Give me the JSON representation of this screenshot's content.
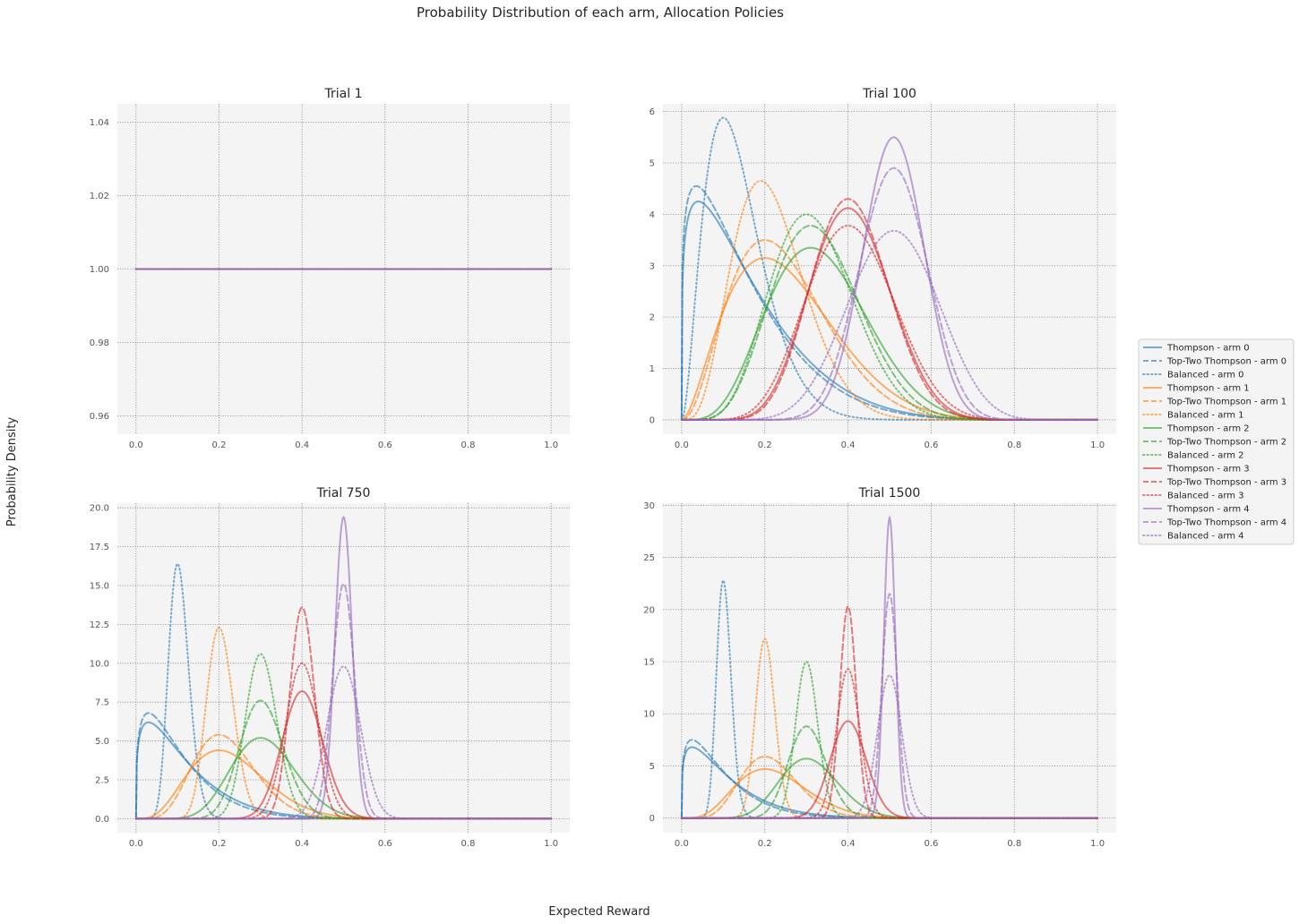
{
  "figure": {
    "title": "Probability Distribution of each arm, Allocation Policies",
    "xlabel": "Expected Reward",
    "ylabel": "Probability Density"
  },
  "colors": {
    "arm0": "#1f77b4",
    "arm1": "#ff7f0e",
    "arm2": "#2ca02c",
    "arm3": "#d62728",
    "arm4": "#9467bd",
    "axes_bg": "#f4f4f4",
    "grid": "#8c8c8c"
  },
  "legend": {
    "placement": "right",
    "entries": [
      {
        "label": "Thompson - arm 0",
        "arm": 0,
        "style": "solid"
      },
      {
        "label": "Top-Two Thompson - arm 0",
        "arm": 0,
        "style": "dashed"
      },
      {
        "label": "Balanced - arm 0",
        "arm": 0,
        "style": "dotted"
      },
      {
        "label": "Thompson - arm 1",
        "arm": 1,
        "style": "solid"
      },
      {
        "label": "Top-Two Thompson - arm 1",
        "arm": 1,
        "style": "dashed"
      },
      {
        "label": "Balanced - arm 1",
        "arm": 1,
        "style": "dotted"
      },
      {
        "label": "Thompson - arm 2",
        "arm": 2,
        "style": "solid"
      },
      {
        "label": "Top-Two Thompson - arm 2",
        "arm": 2,
        "style": "dashed"
      },
      {
        "label": "Balanced - arm 2",
        "arm": 2,
        "style": "dotted"
      },
      {
        "label": "Thompson - arm 3",
        "arm": 3,
        "style": "solid"
      },
      {
        "label": "Top-Two Thompson - arm 3",
        "arm": 3,
        "style": "dashed"
      },
      {
        "label": "Balanced - arm 3",
        "arm": 3,
        "style": "dotted"
      },
      {
        "label": "Thompson - arm 4",
        "arm": 4,
        "style": "solid"
      },
      {
        "label": "Top-Two Thompson - arm 4",
        "arm": 4,
        "style": "dashed"
      },
      {
        "label": "Balanced - arm 4",
        "arm": 4,
        "style": "dotted"
      }
    ]
  },
  "chart_data": [
    {
      "type": "line",
      "title": "Trial 1",
      "xlim": [
        0,
        1
      ],
      "ylim": [
        0.955,
        1.045
      ],
      "xticks": [
        "0.0",
        "0.2",
        "0.4",
        "0.6",
        "0.8",
        "1.0"
      ],
      "yticks": [
        "0.96",
        "0.98",
        "1.00",
        "1.02",
        "1.04"
      ],
      "grid": true,
      "distribution": "beta",
      "series": [
        {
          "name": "Thompson - arm 0",
          "arm": 0,
          "style": "solid",
          "mode": 0,
          "peak": 1.0
        },
        {
          "name": "Top-Two Thompson - arm 0",
          "arm": 0,
          "style": "dashed",
          "mode": 0,
          "peak": 1.0
        },
        {
          "name": "Balanced - arm 0",
          "arm": 0,
          "style": "dotted",
          "mode": 0,
          "peak": 1.0
        },
        {
          "name": "Thompson - arm 1",
          "arm": 1,
          "style": "solid",
          "mode": 0,
          "peak": 1.0
        },
        {
          "name": "Top-Two Thompson - arm 1",
          "arm": 1,
          "style": "dashed",
          "mode": 0,
          "peak": 1.0
        },
        {
          "name": "Balanced - arm 1",
          "arm": 1,
          "style": "dotted",
          "mode": 0,
          "peak": 1.0
        },
        {
          "name": "Thompson - arm 2",
          "arm": 2,
          "style": "solid",
          "mode": 0,
          "peak": 1.0
        },
        {
          "name": "Top-Two Thompson - arm 2",
          "arm": 2,
          "style": "dashed",
          "mode": 0,
          "peak": 1.0
        },
        {
          "name": "Balanced - arm 2",
          "arm": 2,
          "style": "dotted",
          "mode": 0,
          "peak": 1.0
        },
        {
          "name": "Thompson - arm 3",
          "arm": 3,
          "style": "solid",
          "mode": 0,
          "peak": 1.0
        },
        {
          "name": "Top-Two Thompson - arm 3",
          "arm": 3,
          "style": "dashed",
          "mode": 0,
          "peak": 1.0
        },
        {
          "name": "Balanced - arm 3",
          "arm": 3,
          "style": "dotted",
          "mode": 0,
          "peak": 1.0
        },
        {
          "name": "Thompson - arm 4",
          "arm": 4,
          "style": "solid",
          "mode": 0,
          "peak": 1.0
        },
        {
          "name": "Top-Two Thompson - arm 4",
          "arm": 4,
          "style": "dashed",
          "mode": 0,
          "peak": 1.0
        },
        {
          "name": "Balanced - arm 4",
          "arm": 4,
          "style": "dotted",
          "mode": 0,
          "peak": 1.0
        }
      ]
    },
    {
      "type": "line",
      "title": "Trial 100",
      "xlim": [
        0,
        1
      ],
      "ylim": [
        -0.28,
        6.15
      ],
      "xticks": [
        "0.0",
        "0.2",
        "0.4",
        "0.6",
        "0.8",
        "1.0"
      ],
      "yticks": [
        "0",
        "1",
        "2",
        "3",
        "4",
        "5",
        "6"
      ],
      "grid": true,
      "distribution": "beta",
      "series": [
        {
          "name": "Thompson - arm 0",
          "arm": 0,
          "style": "solid",
          "mode": 0.04,
          "peak": 4.25
        },
        {
          "name": "Top-Two Thompson - arm 0",
          "arm": 0,
          "style": "dashed",
          "mode": 0.035,
          "peak": 4.55
        },
        {
          "name": "Balanced - arm 0",
          "arm": 0,
          "style": "dotted",
          "mode": 0.1,
          "peak": 5.88
        },
        {
          "name": "Thompson - arm 1",
          "arm": 1,
          "style": "solid",
          "mode": 0.2,
          "peak": 3.15
        },
        {
          "name": "Top-Two Thompson - arm 1",
          "arm": 1,
          "style": "dashed",
          "mode": 0.2,
          "peak": 3.5
        },
        {
          "name": "Balanced - arm 1",
          "arm": 1,
          "style": "dotted",
          "mode": 0.19,
          "peak": 4.65
        },
        {
          "name": "Thompson - arm 2",
          "arm": 2,
          "style": "solid",
          "mode": 0.31,
          "peak": 3.35
        },
        {
          "name": "Top-Two Thompson - arm 2",
          "arm": 2,
          "style": "dashed",
          "mode": 0.31,
          "peak": 3.78
        },
        {
          "name": "Balanced - arm 2",
          "arm": 2,
          "style": "dotted",
          "mode": 0.3,
          "peak": 4.0
        },
        {
          "name": "Thompson - arm 3",
          "arm": 3,
          "style": "solid",
          "mode": 0.4,
          "peak": 4.12
        },
        {
          "name": "Top-Two Thompson - arm 3",
          "arm": 3,
          "style": "dashed",
          "mode": 0.4,
          "peak": 4.3
        },
        {
          "name": "Balanced - arm 3",
          "arm": 3,
          "style": "dotted",
          "mode": 0.4,
          "peak": 3.78
        },
        {
          "name": "Thompson - arm 4",
          "arm": 4,
          "style": "solid",
          "mode": 0.51,
          "peak": 5.5
        },
        {
          "name": "Top-Two Thompson - arm 4",
          "arm": 4,
          "style": "dashed",
          "mode": 0.51,
          "peak": 4.9
        },
        {
          "name": "Balanced - arm 4",
          "arm": 4,
          "style": "dotted",
          "mode": 0.51,
          "peak": 3.68
        }
      ]
    },
    {
      "type": "line",
      "title": "Trial 750",
      "xlim": [
        0,
        1
      ],
      "ylim": [
        -0.9,
        20.3
      ],
      "xticks": [
        "0.0",
        "0.2",
        "0.4",
        "0.6",
        "0.8",
        "1.0"
      ],
      "yticks": [
        "0.0",
        "2.5",
        "5.0",
        "7.5",
        "10.0",
        "12.5",
        "15.0",
        "17.5",
        "20.0"
      ],
      "grid": true,
      "distribution": "beta",
      "series": [
        {
          "name": "Thompson - arm 0",
          "arm": 0,
          "style": "solid",
          "mode": 0.03,
          "peak": 6.2
        },
        {
          "name": "Top-Two Thompson - arm 0",
          "arm": 0,
          "style": "dashed",
          "mode": 0.03,
          "peak": 6.8
        },
        {
          "name": "Balanced - arm 0",
          "arm": 0,
          "style": "dotted",
          "mode": 0.1,
          "peak": 16.4
        },
        {
          "name": "Thompson - arm 1",
          "arm": 1,
          "style": "solid",
          "mode": 0.2,
          "peak": 4.4
        },
        {
          "name": "Top-Two Thompson - arm 1",
          "arm": 1,
          "style": "dashed",
          "mode": 0.2,
          "peak": 5.4
        },
        {
          "name": "Balanced - arm 1",
          "arm": 1,
          "style": "dotted",
          "mode": 0.2,
          "peak": 12.3
        },
        {
          "name": "Thompson - arm 2",
          "arm": 2,
          "style": "solid",
          "mode": 0.3,
          "peak": 5.2
        },
        {
          "name": "Top-Two Thompson - arm 2",
          "arm": 2,
          "style": "dashed",
          "mode": 0.3,
          "peak": 7.6
        },
        {
          "name": "Balanced - arm 2",
          "arm": 2,
          "style": "dotted",
          "mode": 0.3,
          "peak": 10.6
        },
        {
          "name": "Thompson - arm 3",
          "arm": 3,
          "style": "solid",
          "mode": 0.4,
          "peak": 8.2
        },
        {
          "name": "Top-Two Thompson - arm 3",
          "arm": 3,
          "style": "dashed",
          "mode": 0.4,
          "peak": 13.6
        },
        {
          "name": "Balanced - arm 3",
          "arm": 3,
          "style": "dotted",
          "mode": 0.4,
          "peak": 10.0
        },
        {
          "name": "Thompson - arm 4",
          "arm": 4,
          "style": "solid",
          "mode": 0.5,
          "peak": 19.4
        },
        {
          "name": "Top-Two Thompson - arm 4",
          "arm": 4,
          "style": "dashed",
          "mode": 0.5,
          "peak": 15.1
        },
        {
          "name": "Balanced - arm 4",
          "arm": 4,
          "style": "dotted",
          "mode": 0.5,
          "peak": 9.8
        }
      ]
    },
    {
      "type": "line",
      "title": "Trial 1500",
      "xlim": [
        0,
        1
      ],
      "ylim": [
        -1.4,
        30.2
      ],
      "xticks": [
        "0.0",
        "0.2",
        "0.4",
        "0.6",
        "0.8",
        "1.0"
      ],
      "yticks": [
        "0",
        "5",
        "10",
        "15",
        "20",
        "25",
        "30"
      ],
      "grid": true,
      "distribution": "beta",
      "series": [
        {
          "name": "Thompson - arm 0",
          "arm": 0,
          "style": "solid",
          "mode": 0.025,
          "peak": 6.8
        },
        {
          "name": "Top-Two Thompson - arm 0",
          "arm": 0,
          "style": "dashed",
          "mode": 0.025,
          "peak": 7.5
        },
        {
          "name": "Balanced - arm 0",
          "arm": 0,
          "style": "dotted",
          "mode": 0.1,
          "peak": 22.8
        },
        {
          "name": "Thompson - arm 1",
          "arm": 1,
          "style": "solid",
          "mode": 0.2,
          "peak": 4.7
        },
        {
          "name": "Top-Two Thompson - arm 1",
          "arm": 1,
          "style": "dashed",
          "mode": 0.2,
          "peak": 5.9
        },
        {
          "name": "Balanced - arm 1",
          "arm": 1,
          "style": "dotted",
          "mode": 0.2,
          "peak": 17.2
        },
        {
          "name": "Thompson - arm 2",
          "arm": 2,
          "style": "solid",
          "mode": 0.3,
          "peak": 5.7
        },
        {
          "name": "Top-Two Thompson - arm 2",
          "arm": 2,
          "style": "dashed",
          "mode": 0.3,
          "peak": 8.8
        },
        {
          "name": "Balanced - arm 2",
          "arm": 2,
          "style": "dotted",
          "mode": 0.3,
          "peak": 15.0
        },
        {
          "name": "Thompson - arm 3",
          "arm": 3,
          "style": "solid",
          "mode": 0.4,
          "peak": 9.3
        },
        {
          "name": "Top-Two Thompson - arm 3",
          "arm": 3,
          "style": "dashed",
          "mode": 0.4,
          "peak": 20.3
        },
        {
          "name": "Balanced - arm 3",
          "arm": 3,
          "style": "dotted",
          "mode": 0.4,
          "peak": 14.3
        },
        {
          "name": "Thompson - arm 4",
          "arm": 4,
          "style": "solid",
          "mode": 0.5,
          "peak": 28.8
        },
        {
          "name": "Top-Two Thompson - arm 4",
          "arm": 4,
          "style": "dashed",
          "mode": 0.5,
          "peak": 21.5
        },
        {
          "name": "Balanced - arm 4",
          "arm": 4,
          "style": "dotted",
          "mode": 0.5,
          "peak": 13.7
        }
      ]
    }
  ]
}
